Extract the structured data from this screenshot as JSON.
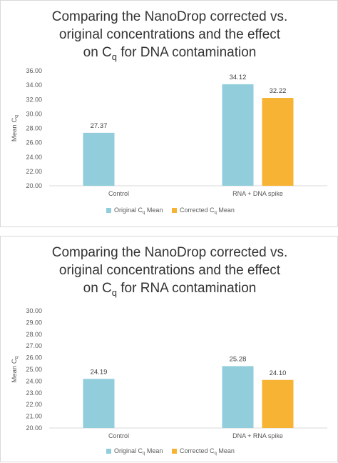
{
  "chart_data": [
    {
      "type": "bar",
      "title": [
        "Comparing the NanoDrop corrected vs.",
        "original concentrations and the effect",
        "on C",
        "q",
        " for DNA contamination"
      ],
      "ylabel": [
        "Mean C",
        "q"
      ],
      "categories": [
        "Control",
        "RNA + DNA spike"
      ],
      "series": [
        {
          "name": [
            "Original C",
            "q",
            " Mean"
          ],
          "values": [
            27.37,
            34.12
          ],
          "color": "#92cddc"
        },
        {
          "name": [
            "Corrected C",
            "q",
            " Mean"
          ],
          "values": [
            null,
            32.22
          ],
          "color": "#f7b334"
        }
      ],
      "ylim": [
        20,
        36
      ],
      "yticks": [
        "20.00",
        "22.00",
        "24.00",
        "26.00",
        "28.00",
        "30.00",
        "32.00",
        "34.00",
        "36.00"
      ],
      "data_labels": [
        [
          "27.37",
          "34.12"
        ],
        [
          "",
          "32.22"
        ]
      ],
      "grid": false,
      "legend": "bottom"
    },
    {
      "type": "bar",
      "title": [
        "Comparing the NanoDrop corrected vs.",
        "original concentrations and the effect",
        "on C",
        "q",
        " for RNA contamination"
      ],
      "ylabel": [
        "Mean C",
        "q"
      ],
      "categories": [
        "Control",
        "DNA + RNA spike"
      ],
      "series": [
        {
          "name": [
            "Original C",
            "q",
            " Mean"
          ],
          "values": [
            24.19,
            25.28
          ],
          "color": "#92cddc"
        },
        {
          "name": [
            "Corrected C",
            "q",
            " Mean"
          ],
          "values": [
            null,
            24.1
          ],
          "color": "#f7b334"
        }
      ],
      "ylim": [
        20,
        30
      ],
      "yticks": [
        "20.00",
        "21.00",
        "22.00",
        "23.00",
        "24.00",
        "25.00",
        "26.00",
        "27.00",
        "28.00",
        "29.00",
        "30.00"
      ],
      "data_labels": [
        [
          "24.19",
          "25.28"
        ],
        [
          "",
          "24.10"
        ]
      ],
      "grid": false,
      "legend": "bottom"
    }
  ]
}
